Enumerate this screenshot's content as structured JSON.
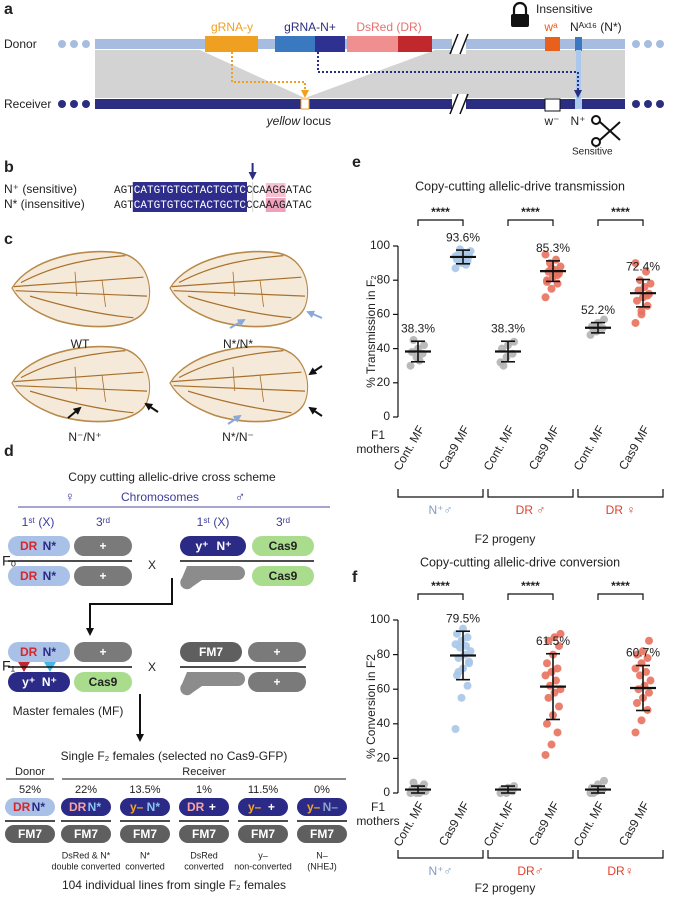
{
  "panel_a": {
    "label": "a",
    "donor": "Donor",
    "receiver": "Receiver",
    "grna_y": "gRNA-y",
    "grna_n": "gRNA-N+",
    "dsred": "DsRed (DR)",
    "wa": "wᵃ",
    "nax": "Nᴬˣ¹⁶ (N*)",
    "insensitive": "Insensitive",
    "locus": [
      "yellow",
      "locus"
    ],
    "w_minus": "w⁻",
    "n_plus": "N⁺",
    "sensitive": "Sensitive"
  },
  "panel_b": {
    "label": "b",
    "rows": [
      {
        "name": "N⁺ (sensitive)",
        "segments": [
          "AGT",
          "CATGTGTGCTACTGCTC",
          "CCA",
          "AGG",
          "ATAC"
        ]
      },
      {
        "name": "N* (insensitive)",
        "segments": [
          "AGT",
          "CATGTGTGCTACTGCTC",
          "CCA",
          "AAG",
          "ATAC"
        ]
      }
    ]
  },
  "panel_c": {
    "label": "c",
    "genotypes": [
      "WT",
      "N*/N*",
      "N⁻/N⁺",
      "N*/N⁻"
    ]
  },
  "panel_d": {
    "label": "d",
    "title": "Copy cutting allelic-drive cross scheme",
    "female": "♀",
    "chromosomes": "Chromosomes",
    "male": "♂",
    "chromosome_headers": [
      "1ˢᵗ (X)",
      "3ʳᵈ"
    ],
    "generations": [
      "F₀",
      "F₁"
    ],
    "cross_sign": "X",
    "alleles": [
      "DR",
      "N*",
      "+",
      "y⁺",
      "N⁺",
      "Cas9",
      "FM7"
    ],
    "master_females": "Master females (MF)",
    "f2_title": "Single F₂ females (selected no Cas9-GFP)",
    "groups": [
      "Donor",
      "Receiver"
    ],
    "f2_classes": [
      {
        "percent": "52%",
        "alleles": [
          "DR",
          "N*"
        ]
      },
      {
        "percent": "22%",
        "alleles": [
          "DR",
          "N*"
        ],
        "caption": [
          "DsRed & N*",
          "double converted"
        ]
      },
      {
        "percent": "13.5%",
        "alleles": [
          "y–",
          "N*"
        ],
        "caption": [
          "N*",
          "converted"
        ]
      },
      {
        "percent": "1%",
        "alleles": [
          "DR",
          "+"
        ],
        "caption": [
          "DsRed",
          "converted"
        ]
      },
      {
        "percent": "11.5%",
        "alleles": [
          "y–",
          "+"
        ],
        "caption": [
          "y–",
          "non-converted"
        ]
      },
      {
        "percent": "0%",
        "alleles": [
          "y–",
          "N–"
        ],
        "caption": [
          "N–",
          "(NHEJ)"
        ]
      }
    ],
    "footer": "104 individual lines from single F₂ females"
  },
  "chart_data": [
    {
      "type": "dot",
      "panel_label": "e",
      "title": "Copy-cutting allelic-drive transmission",
      "ylabel": "% Transmission in F₂",
      "ylim": [
        0,
        100
      ],
      "yticks": [
        0,
        20,
        40,
        60,
        80,
        100
      ],
      "categories": [
        "Cont. MF",
        "Cas9 MF",
        "Cont. MF",
        "Cas9 MF",
        "Cont. MF",
        "Cas9 MF"
      ],
      "colors": [
        "#b3b3b3",
        "#a9c6e8",
        "#b3b3b3",
        "#e8715e",
        "#b3b3b3",
        "#e8715e"
      ],
      "points": [
        [
          30,
          35,
          37,
          38,
          40,
          42,
          45,
          33
        ],
        [
          87,
          90,
          91,
          92,
          93,
          94,
          95,
          96,
          97,
          98,
          89,
          94
        ],
        [
          32,
          35,
          37,
          40,
          42,
          44,
          30
        ],
        [
          70,
          75,
          78,
          80,
          82,
          84,
          85,
          86,
          88,
          90,
          92,
          95,
          87,
          83,
          79
        ],
        [
          48,
          50,
          52,
          53,
          55,
          57,
          51
        ],
        [
          55,
          60,
          65,
          68,
          70,
          72,
          74,
          76,
          78,
          80,
          85,
          90,
          62,
          71
        ]
      ],
      "means": [
        38.3,
        93.6,
        38.3,
        85.3,
        52.2,
        72.4
      ],
      "value_labels": [
        "38.3%",
        "93.6%",
        "38.3%",
        "85.3%",
        "52.2%",
        "72.4%"
      ],
      "sd": [
        6,
        4,
        6,
        6,
        3,
        8
      ],
      "significance": [
        "****",
        "****",
        "****"
      ],
      "row_label": [
        "F1",
        "mothers"
      ],
      "groups": [
        "N⁺♂",
        "DR ♂",
        "DR ♀"
      ],
      "group_colors": [
        "#7f9cc4",
        "#e0412b",
        "#e0412b"
      ],
      "xlabel": "F2 progeny"
    },
    {
      "type": "dot",
      "panel_label": "f",
      "title": "Copy-cutting allelic-drive conversion",
      "ylabel": "% Conversion in F2",
      "ylim": [
        0,
        100
      ],
      "yticks": [
        0,
        20,
        40,
        60,
        80,
        100
      ],
      "categories": [
        "Cont. MF",
        "Cas9 MF",
        "Cont. MF",
        "Cas9 MF",
        "Cont. MF",
        "Cas9 MF"
      ],
      "colors": [
        "#b3b3b3",
        "#a9c6e8",
        "#b3b3b3",
        "#e8715e",
        "#b3b3b3",
        "#e8715e"
      ],
      "points": [
        [
          0,
          0,
          1,
          2,
          3,
          5,
          6,
          0,
          1
        ],
        [
          37,
          55,
          62,
          68,
          72,
          75,
          78,
          80,
          82,
          84,
          85,
          86,
          88,
          90,
          92,
          95,
          76,
          70
        ],
        [
          0,
          0,
          1,
          2,
          3,
          4,
          1
        ],
        [
          22,
          28,
          35,
          40,
          45,
          50,
          55,
          58,
          60,
          62,
          65,
          68,
          70,
          72,
          75,
          80,
          85,
          88,
          90,
          92
        ],
        [
          0,
          1,
          2,
          3,
          5,
          7,
          0
        ],
        [
          35,
          42,
          48,
          52,
          55,
          58,
          60,
          62,
          65,
          68,
          70,
          72,
          75,
          78,
          80,
          82,
          88
        ]
      ],
      "means": [
        2,
        79.5,
        2,
        61.5,
        2,
        60.7
      ],
      "value_labels": [
        null,
        "79.5%",
        null,
        "61.5%",
        null,
        "60.7%"
      ],
      "sd": [
        2,
        14,
        2,
        19,
        2,
        13
      ],
      "significance": [
        "****",
        "****",
        "****"
      ],
      "row_label": [
        "F1",
        "mothers"
      ],
      "groups": [
        "N⁺♂",
        "DR♂",
        "DR♀"
      ],
      "group_colors": [
        "#7f9cc4",
        "#e0412b",
        "#e0412b"
      ],
      "xlabel": "F2 progeny"
    }
  ]
}
